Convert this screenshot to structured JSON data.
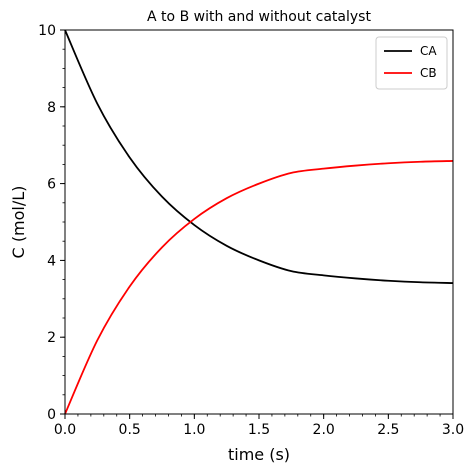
{
  "chart_data": {
    "type": "line",
    "title": "A to B with and without catalyst",
    "xlabel": "time (s)",
    "ylabel": "C (mol/L)",
    "xlim": [
      0,
      3
    ],
    "ylim": [
      0,
      10
    ],
    "xticks": [
      "0.0",
      "0.5",
      "1.0",
      "1.5",
      "2.0",
      "2.5",
      "3.0"
    ],
    "yticks": [
      "0",
      "2",
      "4",
      "6",
      "8",
      "10"
    ],
    "grid": false,
    "legend": "top-right",
    "series": [
      {
        "name": "CA",
        "color": "#000000",
        "x": [
          0,
          0.25,
          0.5,
          0.75,
          1.0,
          1.25,
          1.5,
          1.75,
          2.0,
          2.25,
          2.5,
          2.75,
          3.0
        ],
        "y": [
          10.0,
          8.08,
          6.68,
          5.66,
          4.92,
          4.38,
          4.0,
          3.72,
          3.61,
          3.53,
          3.47,
          3.43,
          3.41
        ]
      },
      {
        "name": "CB",
        "color": "#ff0000",
        "x": [
          0,
          0.25,
          0.5,
          0.75,
          1.0,
          1.25,
          1.5,
          1.75,
          2.0,
          2.25,
          2.5,
          2.75,
          3.0
        ],
        "y": [
          0.0,
          1.92,
          3.32,
          4.34,
          5.08,
          5.62,
          6.0,
          6.28,
          6.39,
          6.47,
          6.53,
          6.57,
          6.59
        ]
      }
    ]
  }
}
